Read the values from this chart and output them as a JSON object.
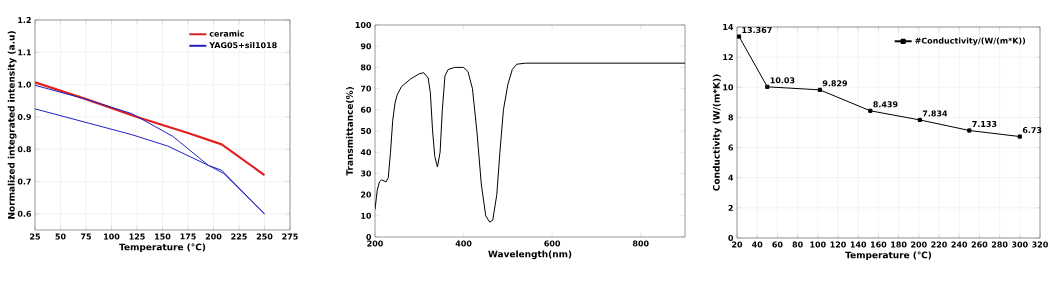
{
  "chart_data": [
    {
      "type": "line",
      "xlabel": "Temperature (°C)",
      "ylabel": "Normalized integrated intensity (a.u)",
      "xlim": [
        25,
        275
      ],
      "ylim": [
        0.55,
        1.2
      ],
      "xticks": [
        25,
        50,
        75,
        100,
        125,
        150,
        175,
        200,
        225,
        250,
        275
      ],
      "yticks": [
        0.6,
        0.7,
        0.8,
        0.9,
        {
          "value": 1,
          "label": "1.0"
        },
        1.1,
        1.2
      ],
      "grid": true,
      "legend": "top right",
      "series": [
        {
          "name": "ceramic",
          "color": "#e02020",
          "x": [
            25,
            75,
            125,
            175,
            208,
            250
          ],
          "values": [
            1.007,
            0.955,
            0.9,
            0.85,
            0.815,
            0.72
          ]
        },
        {
          "name": "YAG05+sil1018",
          "color": "#2020c0",
          "x": [
            25,
            75,
            120,
            160,
            195,
            208,
            250,
            210,
            195,
            155,
            120,
            25
          ],
          "values": [
            0.998,
            0.955,
            0.91,
            0.84,
            0.75,
            0.735,
            0.6,
            0.725,
            0.75,
            0.81,
            0.845,
            0.925
          ]
        }
      ]
    },
    {
      "type": "line",
      "xlabel": "Wavelength(nm)",
      "ylabel": "Transmittance(%)",
      "xlim": [
        200,
        900
      ],
      "ylim": [
        0,
        100
      ],
      "xticks": [
        200,
        400,
        600,
        800
      ],
      "yticks": [
        0,
        10,
        20,
        30,
        40,
        50,
        60,
        70,
        80,
        90,
        100
      ],
      "series": [
        {
          "color": "#000000",
          "x": [
            200,
            205,
            210,
            215,
            225,
            230,
            235,
            240,
            245,
            250,
            260,
            280,
            300,
            310,
            320,
            325,
            330,
            335,
            341,
            347,
            352,
            358,
            365,
            380,
            400,
            410,
            420,
            430,
            440,
            450,
            459,
            466,
            475,
            482,
            490,
            500,
            510,
            520,
            540,
            600,
            700,
            800,
            900
          ],
          "values": [
            13,
            22,
            26,
            27,
            26,
            28,
            40,
            55,
            63,
            67,
            71,
            74.5,
            77,
            77.5,
            75,
            68,
            50,
            38,
            33,
            40,
            60,
            76,
            79,
            80,
            80,
            78,
            70,
            50,
            25,
            10,
            7,
            8,
            20,
            40,
            60,
            72,
            79,
            81.5,
            82,
            82,
            82,
            82,
            82
          ]
        }
      ]
    },
    {
      "type": "line",
      "xlabel": "Temperature (℃)",
      "ylabel": "Conductivity (W/(m*K))",
      "xlim": [
        20,
        320
      ],
      "ylim": [
        0,
        14
      ],
      "xticks": [
        20,
        40,
        60,
        80,
        100,
        120,
        140,
        160,
        180,
        200,
        220,
        240,
        260,
        280,
        300,
        320
      ],
      "yticks": [
        0,
        2,
        4,
        6,
        8,
        10,
        12,
        14
      ],
      "grid": true,
      "legend": "top right",
      "marker": "square",
      "data_labels": true,
      "series": [
        {
          "name": "#Conductivity/(W/(m*K))",
          "color": "#000000",
          "x": [
            22,
            50,
            102,
            152,
            201,
            250,
            300
          ],
          "values": [
            13.367,
            10.03,
            9.829,
            8.439,
            7.834,
            7.133,
            6.73
          ]
        }
      ]
    }
  ]
}
